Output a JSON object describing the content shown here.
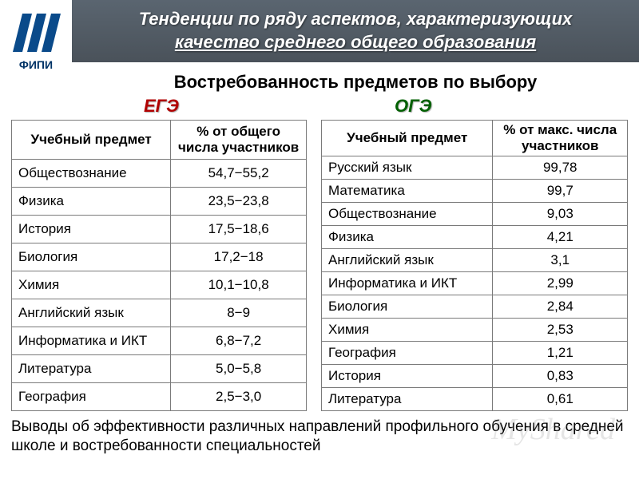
{
  "logo": {
    "text": "ФИПИ",
    "bar_color": "#0a4a8a",
    "bg": "#ffffff"
  },
  "header": {
    "title_line1": "Тенденции по ряду аспектов, характеризующих",
    "title_line2": "качество среднего общего образования",
    "bg_gradient_top": "#5a6570",
    "bg_gradient_bottom": "#4a525a"
  },
  "subtitle": "Востребованность предметов по выбору",
  "exam_labels": {
    "left": "ЕГЭ",
    "right": "ОГЭ",
    "left_color": "#b00000",
    "right_color": "#006000"
  },
  "table_left": {
    "type": "table",
    "columns": [
      "Учебный предмет",
      "% от общего числа участников"
    ],
    "rows": [
      [
        "Обществознание",
        "54,7−55,2"
      ],
      [
        "Физика",
        "23,5−23,8"
      ],
      [
        "История",
        "17,5−18,6"
      ],
      [
        "Биология",
        "17,2−18"
      ],
      [
        "Химия",
        "10,1−10,8"
      ],
      [
        "Английский язык",
        "8−9"
      ],
      [
        "Информатика и ИКТ",
        "6,8−7,2"
      ],
      [
        "Литература",
        "5,0−5,8"
      ],
      [
        "География",
        "2,5−3,0"
      ]
    ],
    "border_color": "#7a7a7a",
    "font_size": 17
  },
  "table_right": {
    "type": "table",
    "columns": [
      "Учебный предмет",
      "% от макс. числа участников"
    ],
    "rows": [
      [
        "Русский язык",
        "99,78"
      ],
      [
        "Математика",
        "99,7"
      ],
      [
        "Обществознание",
        "9,03"
      ],
      [
        "Физика",
        "4,21"
      ],
      [
        "Английский язык",
        "3,1"
      ],
      [
        "Информатика и ИКТ",
        "2,99"
      ],
      [
        "Биология",
        "2,84"
      ],
      [
        "Химия",
        "2,53"
      ],
      [
        "География",
        "1,21"
      ],
      [
        "История",
        "0,83"
      ],
      [
        "Литература",
        "0,61"
      ]
    ],
    "border_color": "#7a7a7a",
    "font_size": 17
  },
  "footer": "Выводы об эффективности различных направлений профильного обучения в средней школе и востребованности специальностей",
  "watermark": "MyShared"
}
